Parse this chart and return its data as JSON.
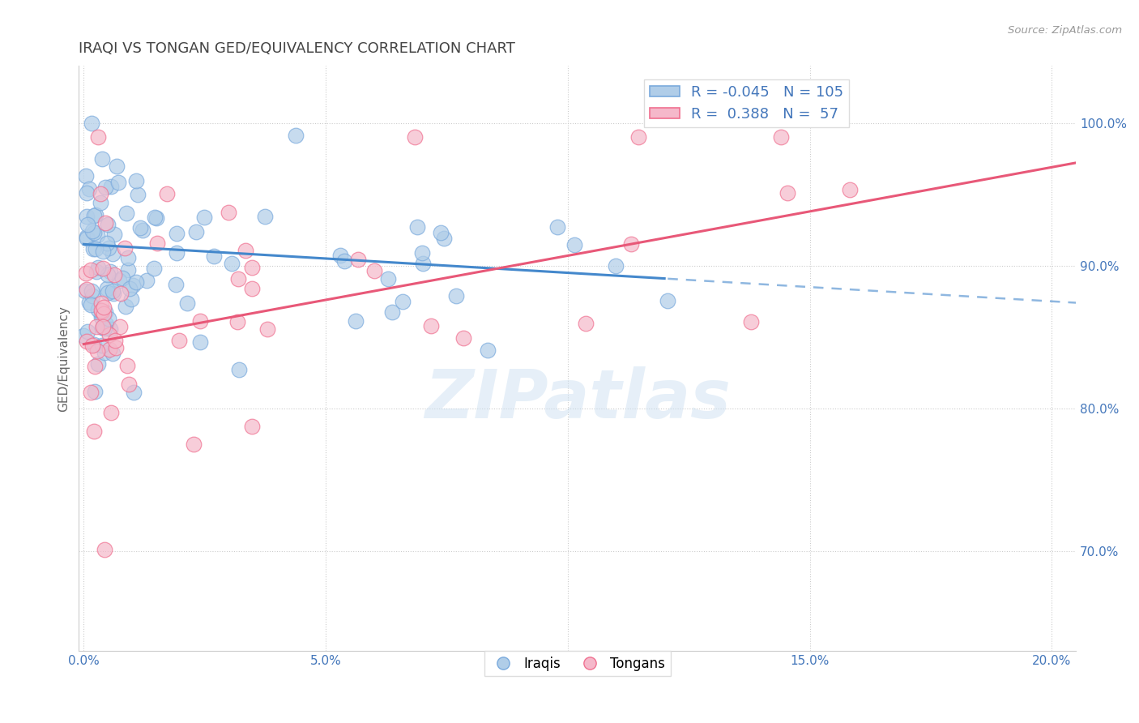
{
  "title": "IRAQI VS TONGAN GED/EQUIVALENCY CORRELATION CHART",
  "source_text": "Source: ZipAtlas.com",
  "xlabel_vals": [
    0.0,
    5.0,
    10.0,
    15.0,
    20.0
  ],
  "ylabel": "GED/Equivalency",
  "ylabel_vals": [
    70.0,
    80.0,
    90.0,
    100.0
  ],
  "xlim": [
    -0.1,
    20.5
  ],
  "ylim": [
    63.0,
    104.0
  ],
  "iraqi_R": -0.045,
  "iraqi_N": 105,
  "tongan_R": 0.388,
  "tongan_N": 57,
  "iraqi_color": "#b0cde8",
  "tongan_color": "#f5b8ca",
  "iraqi_edge_color": "#7aaadd",
  "tongan_edge_color": "#f07090",
  "iraqi_line_color": "#4488cc",
  "tongan_line_color": "#e85878",
  "iraqi_line_solid_end": 12.0,
  "tongan_line_solid_end": 20.5,
  "watermark_text": "ZIPatlas",
  "background_color": "#ffffff",
  "grid_color": "#cccccc",
  "title_color": "#444444",
  "axis_label_color": "#4477bb",
  "title_fontsize": 13,
  "tick_fontsize": 11,
  "legend_fontsize": 13
}
